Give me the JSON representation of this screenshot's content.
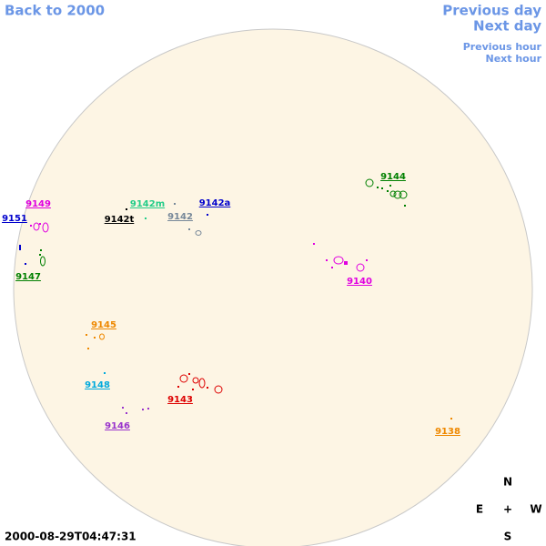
{
  "nav": {
    "back": "Back to 2000",
    "previous_day": "Previous day",
    "next_day": "Next day",
    "previous_hour": "Previous hour",
    "next_hour": "Next hour"
  },
  "regions": [
    {
      "label": "9144",
      "color": "#008000"
    },
    {
      "label": "9149",
      "color": "#e000e0"
    },
    {
      "label": "9151",
      "color": "#0000cc"
    },
    {
      "label": "9142m",
      "color": "#22cc88"
    },
    {
      "label": "9142a",
      "color": "#0000cc"
    },
    {
      "label": "9142t",
      "color": "#000000"
    },
    {
      "label": "9142",
      "color": "#778899"
    },
    {
      "label": "9147",
      "color": "#008000"
    },
    {
      "label": "9140",
      "color": "#e000e0"
    },
    {
      "label": "9145",
      "color": "#ee8800"
    },
    {
      "label": "9148",
      "color": "#00aadd"
    },
    {
      "label": "9143",
      "color": "#dd0000"
    },
    {
      "label": "9146",
      "color": "#9933cc"
    },
    {
      "label": "9138",
      "color": "#ee8800"
    }
  ],
  "compass": {
    "north": "N",
    "east": "E",
    "center": "+",
    "west": "W",
    "south": "S"
  },
  "timestamp": "2000-08-29T04:47:31"
}
